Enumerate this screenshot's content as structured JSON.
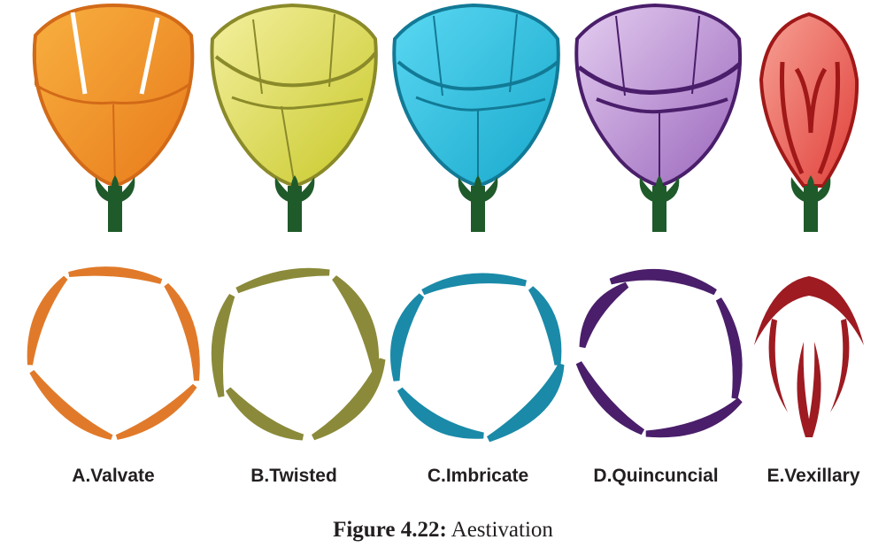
{
  "figure": {
    "caption_number": "Figure 4.22:",
    "caption_text": "Aestivation",
    "panels": [
      {
        "id": "valvate",
        "label": "A.Valvate",
        "color": "#e07a2a",
        "flower_light": "#f8b040",
        "flower_dark": "#e87a1a",
        "flower_edge": "#d26a18"
      },
      {
        "id": "twisted",
        "label": "B.Twisted",
        "color": "#8a8a3a",
        "flower_light": "#f4f0a0",
        "flower_dark": "#c8c828",
        "flower_edge": "#8a8a2a"
      },
      {
        "id": "imbricate",
        "label": "C.Imbricate",
        "color": "#1a8aa8",
        "flower_light": "#5ad8f2",
        "flower_dark": "#18a8cc",
        "flower_edge": "#127a96"
      },
      {
        "id": "quincuncial",
        "label": "D.Quincuncial",
        "color": "#4a1e6a",
        "flower_light": "#d8b8e8",
        "flower_dark": "#a070c0",
        "flower_edge": "#4a1e6a"
      },
      {
        "id": "vexillary",
        "label": "E.Vexillary",
        "color": "#9e1b22",
        "flower_light": "#f58a80",
        "flower_dark": "#e0403a",
        "flower_edge": "#a01818"
      }
    ],
    "stem_color": "#1f5a2a"
  }
}
